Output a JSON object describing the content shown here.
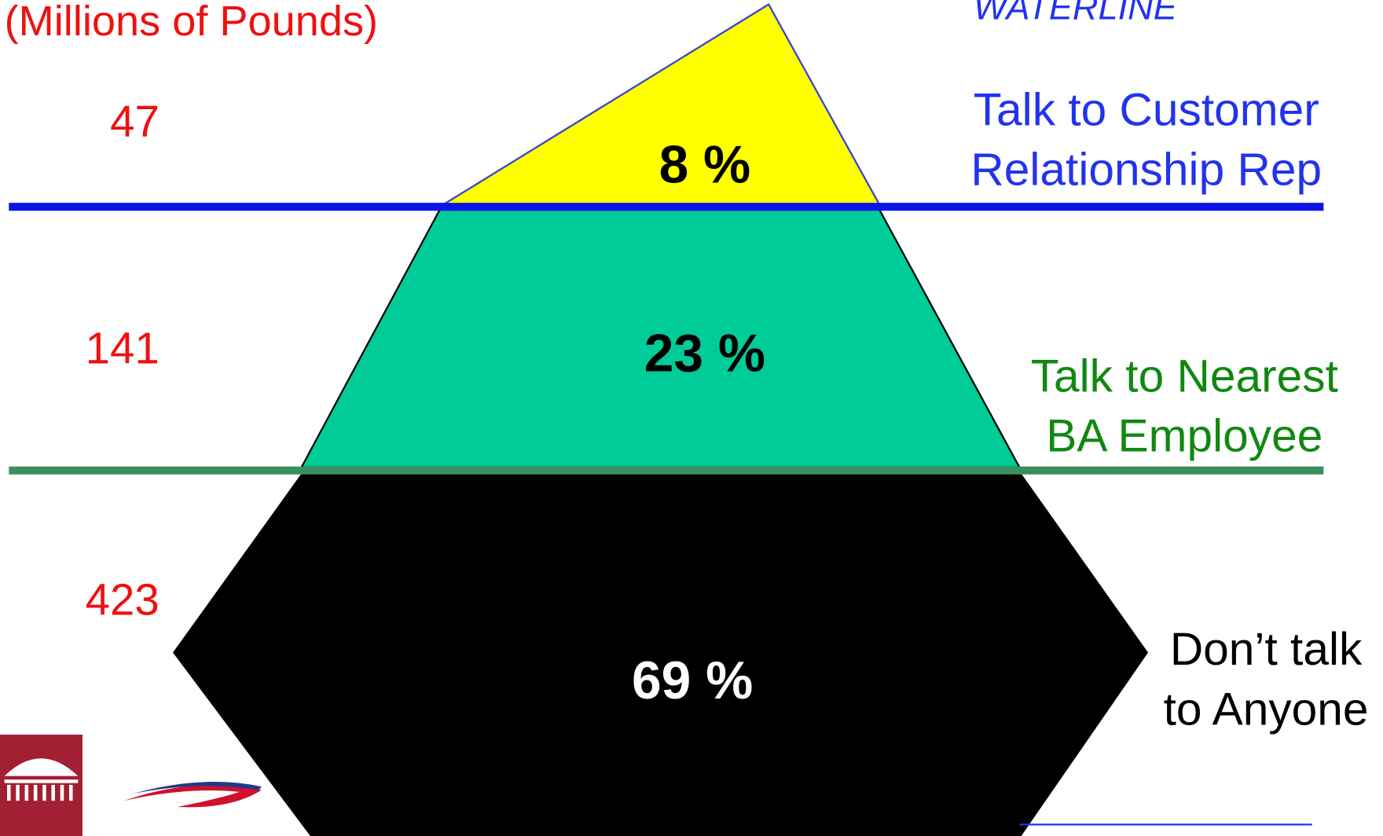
{
  "header": {
    "unit_label": "(Millions of Pounds)",
    "waterline": "WATERLINE"
  },
  "levels": [
    {
      "amount": "47",
      "percent": "8 %",
      "label": [
        "Talk to Customer",
        "Relationship Rep"
      ]
    },
    {
      "amount": "141",
      "percent": "23 %",
      "label": [
        "Talk to Nearest",
        "BA Employee"
      ]
    },
    {
      "amount": "423",
      "percent": "69 %",
      "label": [
        "Don’t talk",
        "to Anyone"
      ]
    }
  ]
}
